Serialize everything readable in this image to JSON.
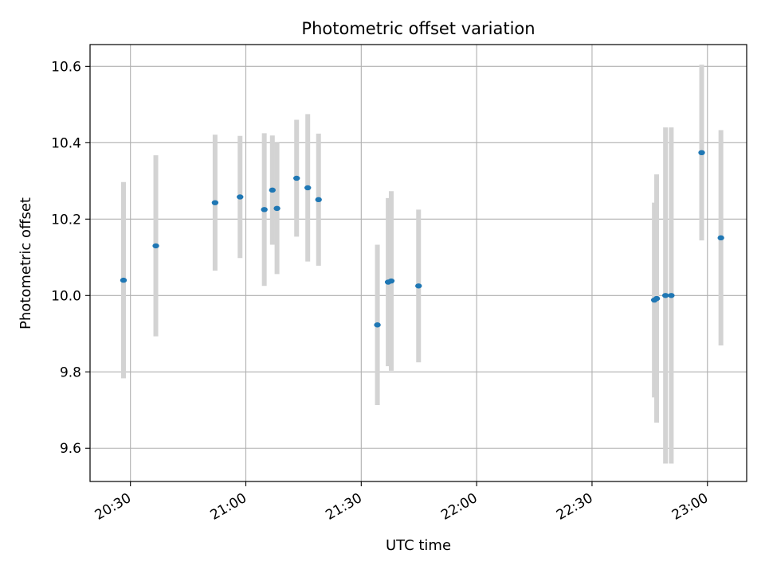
{
  "chart_data": {
    "type": "scatter",
    "title": "Photometric offset variation",
    "xlabel": "UTC time",
    "ylabel": "Photometric offset",
    "x_ticks": [
      "20:30",
      "21:00",
      "21:30",
      "22:00",
      "22:30",
      "23:00"
    ],
    "y_ticks": [
      "9.6",
      "9.8",
      "10.0",
      "10.2",
      "10.4",
      "10.6"
    ],
    "xlim": [
      "20:19.5",
      "23:10.2"
    ],
    "ylim": [
      9.513,
      10.657
    ],
    "grid": true,
    "colors": {
      "point": "#1f77b4",
      "errorbar": "#d3d3d3",
      "grid": "#b0b0b0"
    },
    "points": [
      {
        "x": "20:28.2",
        "y": 10.04,
        "yerr": 0.257
      },
      {
        "x": "20:36.6",
        "y": 10.13,
        "yerr": 0.237
      },
      {
        "x": "20:52.0",
        "y": 10.243,
        "yerr": 0.178
      },
      {
        "x": "20:58.5",
        "y": 10.258,
        "yerr": 0.16
      },
      {
        "x": "21:04.8",
        "y": 10.225,
        "yerr": 0.2
      },
      {
        "x": "21:06.9",
        "y": 10.276,
        "yerr": 0.143
      },
      {
        "x": "21:08.1",
        "y": 10.228,
        "yerr": 0.172
      },
      {
        "x": "21:13.2",
        "y": 10.307,
        "yerr": 0.153
      },
      {
        "x": "21:16.1",
        "y": 10.282,
        "yerr": 0.193
      },
      {
        "x": "21:18.9",
        "y": 10.251,
        "yerr": 0.173
      },
      {
        "x": "21:34.2",
        "y": 9.923,
        "yerr": 0.21
      },
      {
        "x": "21:37.0",
        "y": 10.035,
        "yerr": 0.22
      },
      {
        "x": "21:37.8",
        "y": 10.038,
        "yerr": 0.235
      },
      {
        "x": "21:44.9",
        "y": 10.025,
        "yerr": 0.2
      },
      {
        "x": "22:46.2",
        "y": 9.988,
        "yerr": 0.255
      },
      {
        "x": "22:46.8",
        "y": 9.992,
        "yerr": 0.325
      },
      {
        "x": "22:49.1",
        "y": 10.0,
        "yerr": 0.44
      },
      {
        "x": "22:50.6",
        "y": 10.0,
        "yerr": 0.44
      },
      {
        "x": "22:58.5",
        "y": 10.374,
        "yerr": 0.23
      },
      {
        "x": "23:03.5",
        "y": 10.151,
        "yerr": 0.282
      }
    ]
  }
}
